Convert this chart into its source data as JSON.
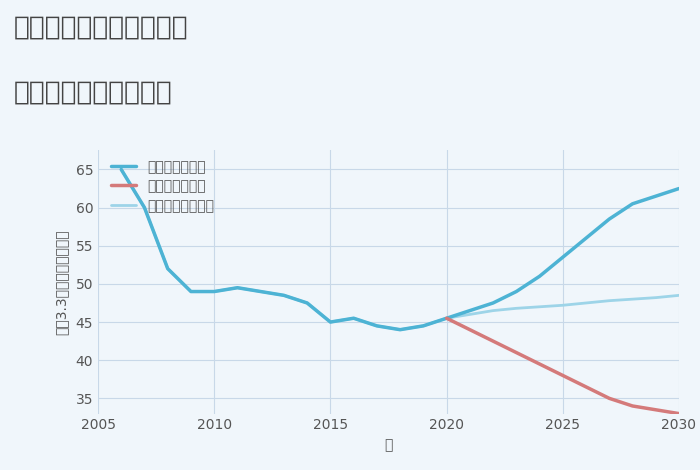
{
  "title_line1": "三重県津市一志町石橋の",
  "title_line2": "中古戸建ての価格推移",
  "xlabel": "年",
  "ylabel": "坪（3.3㎡）単価（万円）",
  "background_color": "#f0f6fb",
  "plot_bg_color": "#f0f6fb",
  "xlim": [
    2005,
    2030
  ],
  "ylim": [
    33,
    67
  ],
  "yticks": [
    35,
    40,
    45,
    50,
    55,
    60,
    65
  ],
  "xticks": [
    2005,
    2010,
    2015,
    2020,
    2025,
    2030
  ],
  "good_scenario": {
    "label": "グッドシナリオ",
    "color": "#4db3d4",
    "linewidth": 2.5,
    "x": [
      2006,
      2007,
      2008,
      2009,
      2010,
      2011,
      2012,
      2013,
      2014,
      2015,
      2016,
      2017,
      2018,
      2019,
      2020,
      2021,
      2022,
      2023,
      2024,
      2025,
      2026,
      2027,
      2028,
      2029,
      2030
    ],
    "y": [
      65.0,
      60.0,
      52.0,
      49.0,
      49.0,
      49.5,
      49.0,
      48.5,
      47.5,
      45.0,
      45.5,
      44.5,
      44.0,
      44.5,
      45.5,
      46.5,
      47.5,
      49.0,
      51.0,
      53.5,
      56.0,
      58.5,
      60.5,
      61.5,
      62.5
    ]
  },
  "bad_scenario": {
    "label": "バッドシナリオ",
    "color": "#d47a7a",
    "linewidth": 2.5,
    "x": [
      2020,
      2021,
      2022,
      2023,
      2024,
      2025,
      2026,
      2027,
      2028,
      2029,
      2030
    ],
    "y": [
      45.5,
      44.0,
      42.5,
      41.0,
      39.5,
      38.0,
      36.5,
      35.0,
      34.0,
      33.5,
      33.0
    ]
  },
  "normal_scenario": {
    "label": "ノーマルシナリオ",
    "color": "#9dd4e8",
    "linewidth": 2.0,
    "x": [
      2006,
      2007,
      2008,
      2009,
      2010,
      2011,
      2012,
      2013,
      2014,
      2015,
      2016,
      2017,
      2018,
      2019,
      2020,
      2021,
      2022,
      2023,
      2024,
      2025,
      2026,
      2027,
      2028,
      2029,
      2030
    ],
    "y": [
      65.0,
      60.0,
      52.0,
      49.0,
      49.0,
      49.5,
      49.0,
      48.5,
      47.5,
      45.0,
      45.5,
      44.5,
      44.0,
      44.5,
      45.5,
      46.0,
      46.5,
      46.8,
      47.0,
      47.2,
      47.5,
      47.8,
      48.0,
      48.2,
      48.5
    ]
  },
  "grid_color": "#c8d8e8",
  "title_fontsize": 19,
  "axis_label_fontsize": 10,
  "tick_fontsize": 10,
  "legend_fontsize": 10
}
